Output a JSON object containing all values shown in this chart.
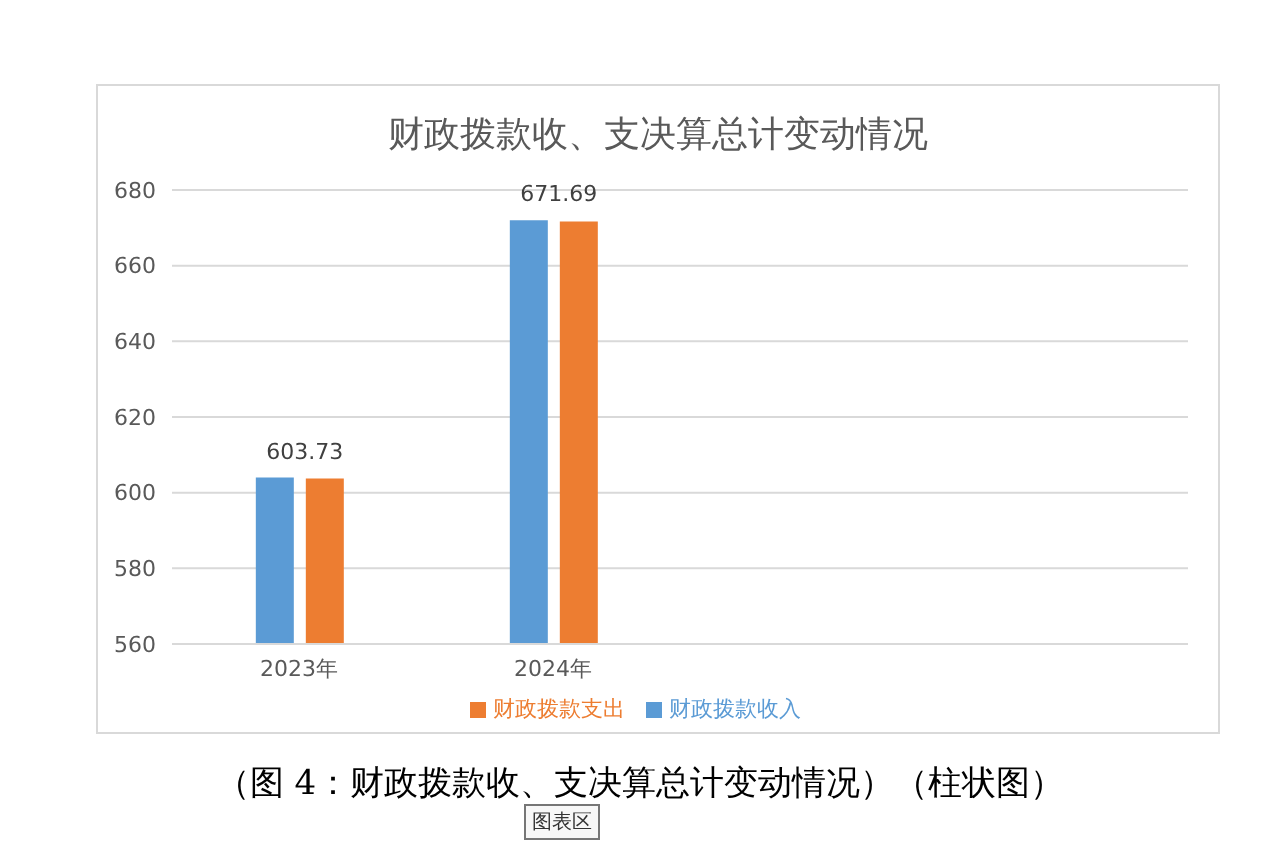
{
  "chart_data": {
    "type": "bar",
    "title": "财政拨款收、支决算总计变动情况",
    "categories": [
      "2023年",
      "2024年",
      null,
      null
    ],
    "series": [
      {
        "name": "财政拨款收入",
        "color": "#5b9bd5",
        "values": [
          604,
          672,
          null,
          null
        ]
      },
      {
        "name": "财政拨款支出",
        "color": "#ed7d31",
        "values": [
          603.73,
          671.69,
          null,
          null
        ],
        "value_labels": [
          "603.73",
          "671.69",
          null,
          null
        ]
      }
    ],
    "ylim": [
      560,
      680
    ],
    "yticks": [
      560,
      580,
      600,
      620,
      640,
      660,
      680
    ],
    "grid": "y",
    "legend": "bottom",
    "annotations": [
      "（图 4：财政拨款收、支决算总计变动情况）（柱状图）",
      "图表区"
    ]
  }
}
